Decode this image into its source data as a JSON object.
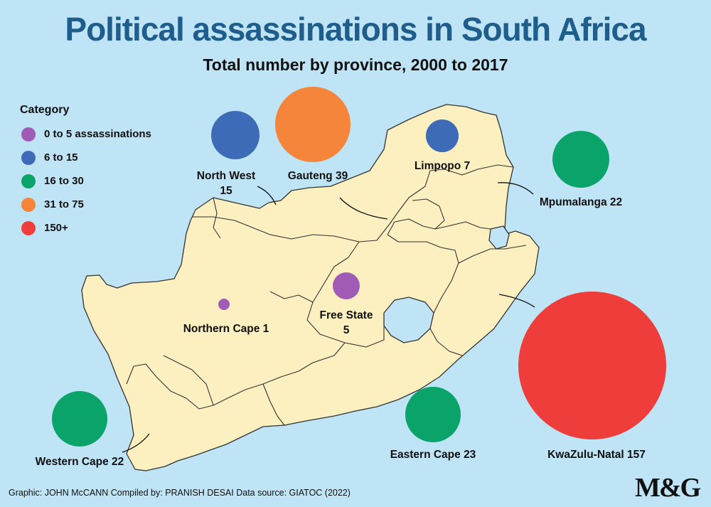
{
  "title": "Political assassinations in South Africa",
  "subtitle": "Total number by province, 2000 to 2017",
  "legend": {
    "title": "Category",
    "items": [
      {
        "label": "0 to 5 assassinations",
        "color": "#a05cb5"
      },
      {
        "label": "6 to 15",
        "color": "#3d6bb7"
      },
      {
        "label": "16 to 30",
        "color": "#0aa36a"
      },
      {
        "label": "31 to 75",
        "color": "#f4853a"
      },
      {
        "label": "150+",
        "color": "#ee3d3a"
      }
    ]
  },
  "chart_data": {
    "type": "bubble-map",
    "provinces": [
      {
        "name": "North West",
        "value": 15,
        "label_lines": [
          "North West",
          "15"
        ],
        "category": "6 to 15"
      },
      {
        "name": "Gauteng",
        "value": 39,
        "label_lines": [
          "Gauteng 39"
        ],
        "category": "31 to 75"
      },
      {
        "name": "Limpopo",
        "value": 7,
        "label_lines": [
          "Limpopo 7"
        ],
        "category": "6 to 15"
      },
      {
        "name": "Mpumalanga",
        "value": 22,
        "label_lines": [
          "Mpumalanga 22"
        ],
        "category": "16 to 30"
      },
      {
        "name": "Northern Cape",
        "value": 1,
        "label_lines": [
          "Northern Cape 1"
        ],
        "category": "0 to 5 assassinations"
      },
      {
        "name": "Free State",
        "value": 5,
        "label_lines": [
          "Free State",
          "5"
        ],
        "category": "0 to 5 assassinations"
      },
      {
        "name": "KwaZulu-Natal",
        "value": 157,
        "label_lines": [
          "KwaZulu-Natal 157"
        ],
        "category": "150+"
      },
      {
        "name": "Western Cape",
        "value": 22,
        "label_lines": [
          "Western Cape 22"
        ],
        "category": "16 to 30"
      },
      {
        "name": "Eastern Cape",
        "value": 23,
        "label_lines": [
          "Eastern Cape 23"
        ],
        "category": "16 to 30"
      }
    ]
  },
  "colors": {
    "background": "#bfe4f5",
    "land": "#fcefc0",
    "border": "#333333",
    "title": "#1f5d8c"
  },
  "credits": "Graphic: JOHN McCANN  Compiled by: PRANISH DESAI  Data source: GIATOC (2022)",
  "logo": "M&G"
}
